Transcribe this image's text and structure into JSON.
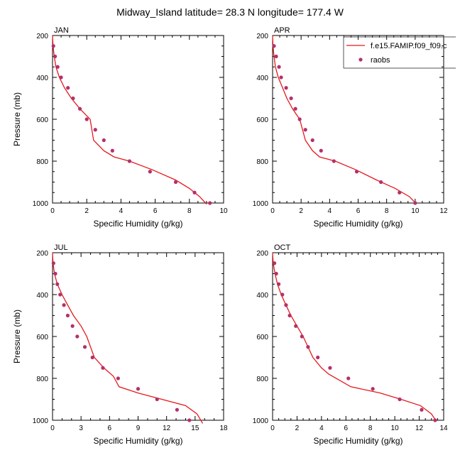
{
  "title": "Midway_Island  latitude= 28.3 N longitude= 177.4 W",
  "colors": {
    "model": "#e41a1c",
    "obs": "#b5306a",
    "axis": "#000000"
  },
  "legend": {
    "placement": "top-right",
    "model_label": "f.e15.FAMIP.f09_f09.c",
    "obs_label": "raobs"
  },
  "chart_data": [
    {
      "type": "line",
      "panel": "JAN",
      "xlabel": "Specific Humidity (g/kg)",
      "ylabel": "Pressure (mb)",
      "xlim": [
        0,
        10
      ],
      "ylim": [
        1000,
        200
      ],
      "xticks": [
        0,
        2,
        4,
        6,
        8,
        10
      ],
      "yticks": [
        200,
        400,
        600,
        800,
        1000
      ],
      "series": [
        {
          "name": "f.e15.FAMIP.f09_f09.c",
          "kind": "line",
          "x": [
            0.0,
            0.03,
            0.1,
            0.2,
            0.4,
            0.7,
            1.1,
            1.6,
            2.2,
            2.4,
            3.0,
            3.6,
            4.5,
            5.8,
            7.2,
            8.0,
            8.6,
            9.0
          ],
          "y": [
            200,
            250,
            300,
            350,
            400,
            450,
            500,
            550,
            600,
            700,
            750,
            780,
            800,
            840,
            890,
            930,
            970,
            1005
          ]
        },
        {
          "name": "raobs",
          "kind": "scatter",
          "x": [
            0.05,
            0.15,
            0.3,
            0.5,
            0.9,
            1.2,
            1.6,
            2.0,
            2.5,
            3.0,
            3.5,
            4.5,
            5.7,
            7.2,
            8.3,
            9.2
          ],
          "y": [
            250,
            300,
            350,
            400,
            450,
            500,
            550,
            600,
            650,
            700,
            750,
            800,
            850,
            900,
            950,
            1000
          ]
        }
      ]
    },
    {
      "type": "line",
      "panel": "APR",
      "xlabel": "Specific Humidity (g/kg)",
      "ylabel": "",
      "xlim": [
        0,
        12
      ],
      "ylim": [
        1000,
        200
      ],
      "xticks": [
        0,
        2,
        4,
        6,
        8,
        10,
        12
      ],
      "yticks": [
        200,
        400,
        600,
        800,
        1000
      ],
      "series": [
        {
          "name": "f.e15.FAMIP.f09_f09.c",
          "kind": "line",
          "x": [
            0.0,
            0.03,
            0.1,
            0.2,
            0.4,
            0.7,
            1.0,
            1.4,
            1.9,
            2.3,
            2.8,
            3.3,
            4.4,
            5.8,
            7.3,
            8.6,
            9.6,
            10.1
          ],
          "y": [
            200,
            250,
            300,
            350,
            400,
            450,
            500,
            550,
            600,
            700,
            750,
            780,
            800,
            840,
            890,
            930,
            970,
            1005
          ]
        },
        {
          "name": "raobs",
          "kind": "scatter",
          "x": [
            0.1,
            0.25,
            0.45,
            0.6,
            0.95,
            1.3,
            1.6,
            1.9,
            2.3,
            2.8,
            3.4,
            4.3,
            5.9,
            7.6,
            8.9,
            10.0
          ],
          "y": [
            250,
            300,
            350,
            400,
            450,
            500,
            550,
            600,
            650,
            700,
            750,
            800,
            850,
            900,
            950,
            1000
          ]
        }
      ]
    },
    {
      "type": "line",
      "panel": "JUL",
      "xlabel": "Specific Humidity (g/kg)",
      "ylabel": "Pressure (mb)",
      "xlim": [
        0,
        18
      ],
      "ylim": [
        1000,
        200
      ],
      "xticks": [
        0,
        3,
        6,
        9,
        12,
        15,
        18
      ],
      "yticks": [
        200,
        400,
        600,
        800,
        1000
      ],
      "series": [
        {
          "name": "f.e15.FAMIP.f09_f09.c",
          "kind": "line",
          "x": [
            0.0,
            0.05,
            0.2,
            0.5,
            1.0,
            1.6,
            2.2,
            3.0,
            3.6,
            4.4,
            5.4,
            6.4,
            7.0,
            9.0,
            11.5,
            14.0,
            15.2,
            15.8
          ],
          "y": [
            200,
            250,
            300,
            350,
            400,
            450,
            500,
            550,
            600,
            700,
            750,
            790,
            840,
            870,
            900,
            930,
            970,
            1015
          ]
        },
        {
          "name": "raobs",
          "kind": "scatter",
          "x": [
            0.1,
            0.3,
            0.5,
            0.8,
            1.2,
            1.6,
            2.1,
            2.6,
            3.4,
            4.2,
            5.3,
            6.9,
            9.0,
            11.0,
            13.1,
            14.4
          ],
          "y": [
            250,
            300,
            350,
            400,
            450,
            500,
            550,
            600,
            650,
            700,
            750,
            800,
            850,
            900,
            950,
            1000
          ]
        }
      ]
    },
    {
      "type": "line",
      "panel": "OCT",
      "xlabel": "Specific Humidity (g/kg)",
      "ylabel": "",
      "xlim": [
        0,
        14
      ],
      "ylim": [
        1000,
        200
      ],
      "xticks": [
        0,
        2,
        4,
        6,
        8,
        10,
        12,
        14
      ],
      "yticks": [
        200,
        400,
        600,
        800,
        1000
      ],
      "series": [
        {
          "name": "f.e15.FAMIP.f09_f09.c",
          "kind": "line",
          "x": [
            0.0,
            0.05,
            0.2,
            0.4,
            0.7,
            1.1,
            1.5,
            2.0,
            2.5,
            3.3,
            4.0,
            4.6,
            6.4,
            8.8,
            10.5,
            12.1,
            13.0,
            13.4
          ],
          "y": [
            200,
            250,
            300,
            350,
            400,
            450,
            500,
            550,
            600,
            700,
            750,
            780,
            840,
            870,
            900,
            930,
            970,
            1005
          ]
        },
        {
          "name": "raobs",
          "kind": "scatter",
          "x": [
            0.15,
            0.3,
            0.5,
            0.8,
            1.1,
            1.4,
            1.9,
            2.4,
            2.9,
            3.7,
            4.7,
            6.2,
            8.2,
            10.4,
            12.2,
            13.3
          ],
          "y": [
            250,
            300,
            350,
            400,
            450,
            500,
            550,
            600,
            650,
            700,
            750,
            800,
            850,
            900,
            950,
            1000
          ]
        }
      ]
    }
  ]
}
